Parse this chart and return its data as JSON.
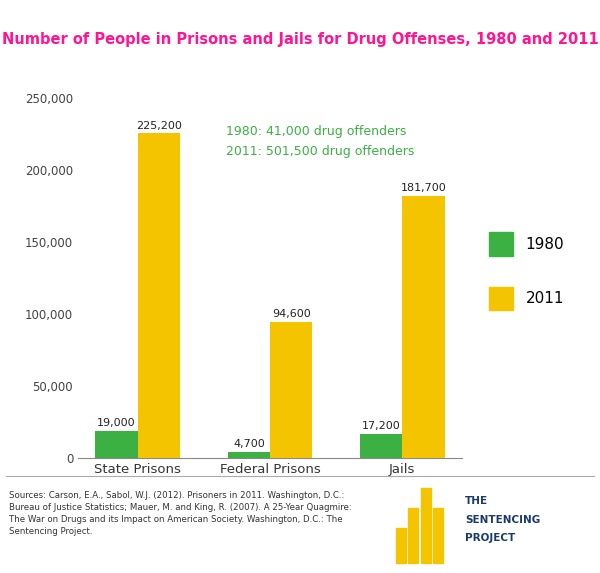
{
  "title": "Number of People in Prisons and Jails for Drug Offenses, 1980 and 2011",
  "title_color": "#FF1493",
  "categories": [
    "State Prisons",
    "Federal Prisons",
    "Jails"
  ],
  "values_1980": [
    19000,
    4700,
    17200
  ],
  "values_2011": [
    225200,
    94600,
    181700
  ],
  "labels_1980": [
    "19,000",
    "4,700",
    "17,200"
  ],
  "labels_2011": [
    "225,200",
    "94,600",
    "181,700"
  ],
  "color_1980": "#3CB043",
  "color_2011": "#F5C400",
  "ylim": [
    0,
    270000
  ],
  "yticks": [
    0,
    50000,
    100000,
    150000,
    200000,
    250000
  ],
  "ytick_labels": [
    "0",
    "50,000",
    "100,000",
    "150,000",
    "200,000",
    "250,000"
  ],
  "annotation_text": "1980: 41,000 drug offenders\n2011: 501,500 drug offenders",
  "annotation_color": "#3CB043",
  "legend_labels": [
    "1980",
    "2011"
  ],
  "source_text": "Sources: Carson, E.A., Sabol, W.J. (2012). Prisoners in 2011. Washington, D.C.:\nBureau of Justice Statistics; Mauer, M. and King, R. (2007). A 25-Year Quagmire:\nThe War on Drugs and its Impact on American Society. Washington, D.C.: The\nSentencing Project.",
  "bar_width": 0.32,
  "background_color": "#FFFFFF",
  "footer_bg_color": "#F5F5F5",
  "footer_line_color": "#AAAAAA",
  "logo_color": "#F5C400",
  "logo_text_color": "#1a3a6b"
}
